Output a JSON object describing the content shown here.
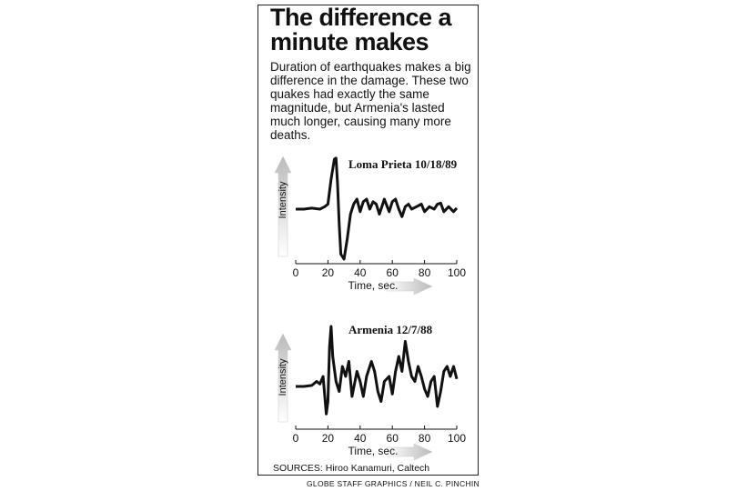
{
  "header": {
    "title": "The difference a minute makes",
    "description": "Duration of earthquakes makes a big difference in the damage. These two quakes had exactly the same magnitude, but Armenia's lasted much longer, causing many more deaths."
  },
  "chart_data": [
    {
      "type": "line",
      "title": "Loma Prieta 10/18/89",
      "y_label": "Intensity",
      "x_label": "Time, sec.",
      "x": [
        0,
        5,
        10,
        15,
        18,
        20,
        22,
        24,
        25,
        26,
        27,
        28,
        30,
        32,
        34,
        36,
        38,
        40,
        42,
        44,
        46,
        48,
        50,
        52,
        55,
        58,
        60,
        62,
        64,
        66,
        68,
        70,
        72,
        75,
        78,
        80,
        83,
        86,
        88,
        90,
        92,
        95,
        98,
        100
      ],
      "series": [
        {
          "color": "#111111",
          "values": [
            0,
            0,
            0.02,
            0,
            0.05,
            0.1,
            0.6,
            1.0,
            1.02,
            0.5,
            -0.3,
            -0.9,
            -1.0,
            -0.6,
            -0.1,
            0.1,
            0.2,
            -0.05,
            0.15,
            0.2,
            0,
            0.15,
            0.1,
            -0.1,
            0.2,
            -0.05,
            0.15,
            0.2,
            0,
            -0.15,
            0.05,
            0.1,
            0,
            0.05,
            0.1,
            -0.05,
            0.05,
            0,
            0.1,
            0.12,
            -0.05,
            0.05,
            -0.05,
            0.02
          ]
        }
      ],
      "xlim": [
        0,
        100
      ],
      "xticks": [
        0,
        20,
        40,
        60,
        80,
        100
      ],
      "ylim": [
        -1.2,
        1.2
      ]
    },
    {
      "type": "line",
      "title": "Armenia 12/7/88",
      "y_label": "Intensity",
      "x_label": "Time, sec.",
      "x": [
        0,
        5,
        10,
        13,
        15,
        17,
        19,
        20,
        21,
        22,
        23,
        25,
        27,
        29,
        31,
        33,
        35,
        38,
        40,
        42,
        44,
        47,
        49,
        51,
        53,
        55,
        58,
        60,
        62,
        64,
        66,
        68,
        70,
        72,
        74,
        76,
        78,
        80,
        82,
        84,
        86,
        88,
        90,
        92,
        94,
        96,
        98,
        100
      ],
      "series": [
        {
          "color": "#111111",
          "values": [
            0,
            0,
            0.02,
            0.1,
            0.05,
            0.2,
            -0.55,
            -0.3,
            0.8,
            1.2,
            0.6,
            0.1,
            -0.1,
            0.4,
            0.2,
            0.5,
            -0.2,
            0.3,
            0.1,
            -0.2,
            0.2,
            0.5,
            0.3,
            -0.1,
            -0.3,
            0.1,
            0.2,
            -0.15,
            0.3,
            0.6,
            0.3,
            0.9,
            0.5,
            0.2,
            0.1,
            0.4,
            0.2,
            -0.05,
            -0.2,
            0.1,
            0.2,
            -0.4,
            -0.1,
            0.3,
            0.4,
            0.2,
            0.4,
            0.15
          ]
        }
      ],
      "xlim": [
        0,
        100
      ],
      "xticks": [
        0,
        20,
        40,
        60,
        80,
        100
      ],
      "ylim": [
        -1.2,
        1.2
      ]
    }
  ],
  "sources": "SOURCES: Hiroo Kanamuri, Caltech",
  "credit": "GLOBE STAFF GRAPHICS / NEIL C. PINCHIN"
}
